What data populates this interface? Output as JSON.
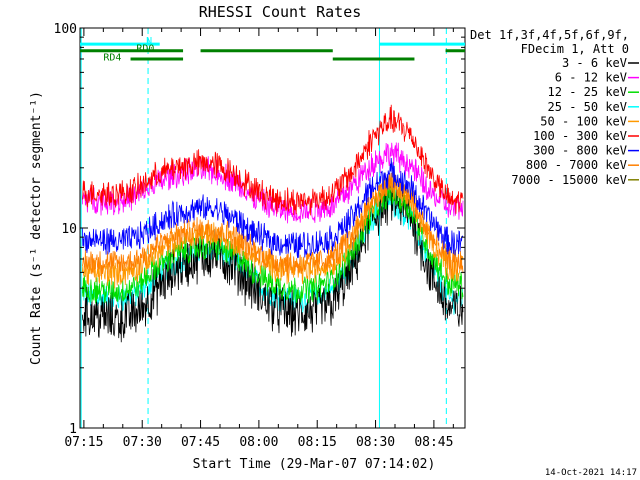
{
  "chart_data": {
    "type": "line",
    "title": "RHESSI Count Rates",
    "xlabel": "Start Time (29-Mar-07 07:14:02)",
    "ylabel": "Count Rate (s⁻¹ detector segment⁻¹)",
    "yscale": "log",
    "ylim": [
      1,
      100
    ],
    "xlim_minutes": [
      0,
      99
    ],
    "x_ticks": [
      "07:15",
      "07:30",
      "07:45",
      "08:00",
      "08:15",
      "08:30",
      "08:45"
    ],
    "x_tick_minutes": [
      1,
      16,
      31,
      46,
      61,
      76,
      91
    ],
    "y_ticks": [
      "1",
      "10",
      "100"
    ],
    "y_tick_values": [
      1,
      10,
      100
    ],
    "grid": false,
    "legend_header": [
      "Det 1f,3f,4f,5f,6f,9f,",
      "FDecim 1, Att 0"
    ],
    "legend_placement": "right",
    "series": [
      {
        "name": "3 - 6 keV",
        "color": "#000000",
        "x": [
          1,
          5,
          10,
          15,
          20,
          25,
          30,
          35,
          40,
          45,
          50,
          55,
          60,
          65,
          70,
          75,
          80,
          85,
          90,
          95
        ],
        "values": [
          3.8,
          3.6,
          3.5,
          3.8,
          5.0,
          6.3,
          7.1,
          7.4,
          6.4,
          4.9,
          4.0,
          3.7,
          3.8,
          4.2,
          6.2,
          11.0,
          14.2,
          11.7,
          6.0,
          3.9
        ]
      },
      {
        "name": "6 - 12 keV",
        "color": "#ff00ff",
        "x": [
          1,
          5,
          10,
          15,
          20,
          25,
          30,
          35,
          40,
          45,
          50,
          55,
          60,
          65,
          70,
          75,
          80,
          85,
          90,
          95
        ],
        "values": [
          14.0,
          13.8,
          13.6,
          14.5,
          17.0,
          18.5,
          19.5,
          19.2,
          17.0,
          14.0,
          12.5,
          12.0,
          12.3,
          13.0,
          16.0,
          21.0,
          24.0,
          20.5,
          15.0,
          12.6
        ]
      },
      {
        "name": "12 - 25 keV",
        "color": "#00dd00",
        "x": [
          1,
          5,
          10,
          15,
          20,
          25,
          30,
          35,
          40,
          45,
          50,
          55,
          60,
          65,
          70,
          75,
          80,
          85,
          90,
          95
        ],
        "values": [
          5.0,
          4.9,
          4.8,
          5.2,
          6.5,
          7.5,
          8.0,
          8.1,
          7.3,
          6.0,
          5.2,
          4.9,
          5.0,
          5.5,
          7.5,
          12.0,
          15.0,
          12.5,
          7.5,
          5.2
        ]
      },
      {
        "name": "25 - 50 keV",
        "color": "#00ffff",
        "x": [
          1,
          5,
          10,
          15,
          20,
          25,
          30,
          35,
          40,
          45,
          50,
          55,
          60,
          65,
          70,
          75,
          80,
          85,
          90,
          95
        ],
        "values": [
          4.6,
          4.5,
          4.4,
          4.7,
          5.8,
          6.8,
          7.5,
          7.7,
          6.8,
          5.4,
          4.6,
          4.4,
          4.5,
          4.9,
          6.8,
          11.2,
          13.8,
          11.0,
          6.5,
          4.4
        ]
      },
      {
        "name": "50 - 100 keV",
        "color": "#ff9900",
        "x": [
          1,
          5,
          10,
          15,
          20,
          25,
          30,
          35,
          40,
          45,
          50,
          55,
          60,
          65,
          70,
          75,
          80,
          85,
          90,
          95
        ],
        "values": [
          6.0,
          6.0,
          5.9,
          6.3,
          7.5,
          8.6,
          9.3,
          9.4,
          8.5,
          7.1,
          6.4,
          6.1,
          6.2,
          6.7,
          8.6,
          13.5,
          16.5,
          13.8,
          8.8,
          6.3
        ]
      },
      {
        "name": "100 - 300 keV",
        "color": "#ff0000",
        "x": [
          1,
          5,
          10,
          15,
          20,
          25,
          30,
          35,
          40,
          45,
          50,
          55,
          60,
          65,
          70,
          75,
          80,
          85,
          90,
          95
        ],
        "values": [
          15.0,
          15.0,
          14.8,
          15.8,
          18.5,
          20.2,
          21.0,
          20.8,
          18.5,
          15.5,
          14.0,
          13.5,
          13.8,
          14.8,
          19.0,
          28.0,
          35.0,
          29.5,
          19.0,
          13.6
        ]
      },
      {
        "name": "300 - 800 keV",
        "color": "#0000ff",
        "x": [
          1,
          5,
          10,
          15,
          20,
          25,
          30,
          35,
          40,
          45,
          50,
          55,
          60,
          65,
          70,
          75,
          80,
          85,
          90,
          95
        ],
        "values": [
          8.6,
          8.7,
          8.5,
          9.0,
          10.5,
          11.8,
          12.5,
          12.4,
          11.0,
          9.3,
          8.5,
          8.2,
          8.3,
          8.9,
          11.2,
          16.0,
          19.0,
          16.0,
          11.0,
          8.4
        ]
      },
      {
        "name": "800 - 7000 keV",
        "color": "#ff7f00",
        "x": [
          1,
          5,
          10,
          15,
          20,
          25,
          30,
          35,
          40,
          45,
          50,
          55,
          60,
          65,
          70,
          75,
          80,
          85,
          90,
          95
        ],
        "values": [
          6.8,
          6.8,
          6.6,
          7.0,
          8.2,
          9.2,
          9.8,
          9.9,
          9.0,
          7.6,
          6.9,
          6.6,
          6.7,
          7.2,
          9.1,
          13.8,
          16.8,
          14.0,
          9.2,
          6.8
        ]
      },
      {
        "name": "7000 - 15000 keV",
        "color": "#808000",
        "x": [],
        "values": []
      }
    ],
    "annotations": [
      {
        "label": "N",
        "color": "#00ffff",
        "segments": [
          [
            0,
            20.5
          ],
          [
            77,
            99
          ]
        ],
        "y_value": 83
      },
      {
        "label": "RD0",
        "color": "#008000",
        "segments": [
          [
            0,
            26.5
          ],
          [
            31,
            65
          ]
        ],
        "y_value": 77
      },
      {
        "label": "RD4",
        "color": "#008000",
        "segments": [
          [
            13,
            26.5
          ],
          [
            65,
            86
          ]
        ],
        "y_value": 70
      },
      {
        "label": "RD4",
        "color": "#008000",
        "segments": [
          [
            94,
            99
          ]
        ],
        "y_value": 77
      }
    ],
    "vertical_markers": [
      {
        "minute": 0.3,
        "color": "#00ffff",
        "style": "solid"
      },
      {
        "minute": 17.5,
        "color": "#00ffff",
        "style": "dashed"
      },
      {
        "minute": 77,
        "color": "#00ffff",
        "style": "solid"
      },
      {
        "minute": 94.2,
        "color": "#00ffff",
        "style": "dashed"
      }
    ],
    "footer": "14-Oct-2021 14:17"
  }
}
